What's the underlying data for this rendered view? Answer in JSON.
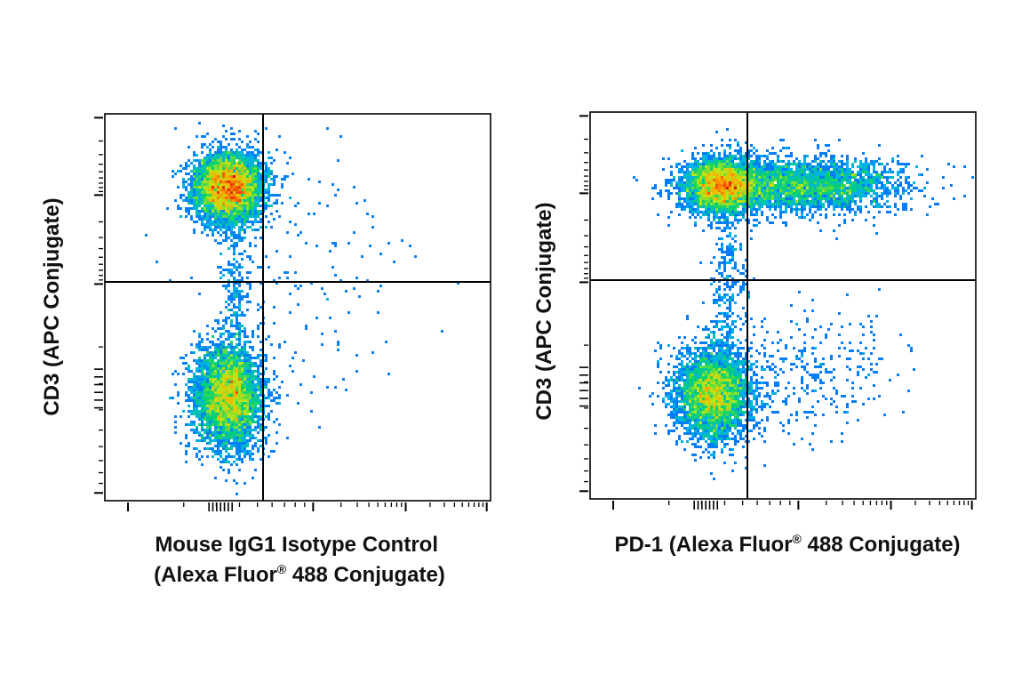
{
  "figure": {
    "panels": [
      {
        "xlabel_lines": [
          "Mouse IgG1 Isotype Control",
          "(Alexa Fluor",
          "®",
          " 488 Conjugate)"
        ],
        "ylabel": "CD3 (APC Conjugate)"
      },
      {
        "xlabel_lines": [
          "PD-1 (Alexa Fluor",
          "®",
          " 488 Conjugate)"
        ],
        "ylabel": "CD3 (APC Conjugate)"
      }
    ]
  },
  "chart_data": [
    {
      "type": "scatter",
      "title": "",
      "xlabel": "Mouse IgG1 Isotype Control (Alexa Fluor® 488 Conjugate)",
      "ylabel": "CD3 (APC Conjugate)",
      "axis_scale": "biexponential (unlabeled ticks)",
      "xlim": [
        0,
        1
      ],
      "ylim": [
        0,
        1
      ],
      "coloring": "density (blue-low, green, yellow, red-high)",
      "quadrant_gate": {
        "x": 0.41,
        "y": 0.565
      },
      "populations": [
        {
          "name": "CD3+ cluster",
          "center": [
            0.32,
            0.81
          ],
          "spread": [
            0.045,
            0.045
          ],
          "fraction": 0.5
        },
        {
          "name": "CD3- cluster",
          "center": [
            0.32,
            0.27
          ],
          "spread": [
            0.045,
            0.07
          ],
          "fraction": 0.45
        },
        {
          "name": "bridge",
          "center": [
            0.34,
            0.55
          ],
          "spread": [
            0.02,
            0.13
          ],
          "fraction": 0.03
        },
        {
          "name": "scattered",
          "center": [
            0.5,
            0.6
          ],
          "spread": [
            0.15,
            0.25
          ],
          "fraction": 0.02
        }
      ]
    },
    {
      "type": "scatter",
      "title": "",
      "xlabel": "PD-1 (Alexa Fluor® 488 Conjugate)",
      "ylabel": "CD3 (APC Conjugate)",
      "axis_scale": "biexponential (unlabeled ticks)",
      "xlim": [
        0,
        1
      ],
      "ylim": [
        0,
        1
      ],
      "coloring": "density (blue-low, green, yellow, red-high)",
      "quadrant_gate": {
        "x": 0.405,
        "y": 0.565
      },
      "populations": [
        {
          "name": "CD3+ PD-1- cluster",
          "center": [
            0.34,
            0.81
          ],
          "spread": [
            0.05,
            0.035
          ],
          "fraction": 0.32
        },
        {
          "name": "CD3+ PD-1+ band",
          "center": [
            0.55,
            0.81
          ],
          "spread": [
            0.13,
            0.035
          ],
          "fraction": 0.28
        },
        {
          "name": "CD3- cluster",
          "center": [
            0.32,
            0.27
          ],
          "spread": [
            0.05,
            0.06
          ],
          "fraction": 0.34
        },
        {
          "name": "bridge",
          "center": [
            0.36,
            0.55
          ],
          "spread": [
            0.025,
            0.13
          ],
          "fraction": 0.03
        },
        {
          "name": "scattered",
          "center": [
            0.55,
            0.33
          ],
          "spread": [
            0.12,
            0.08
          ],
          "fraction": 0.03
        }
      ]
    }
  ]
}
